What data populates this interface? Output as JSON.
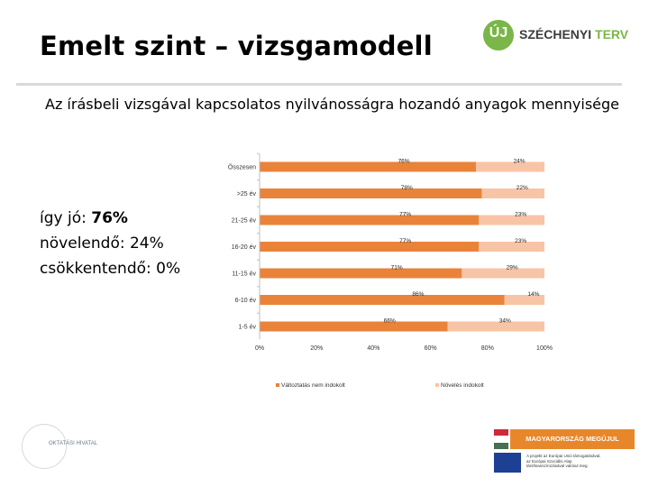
{
  "header": {
    "title": "Emelt szint – vizsgamodell",
    "logo_mark": "ÚJ",
    "logo_word1": "SZÉCHENYI",
    "logo_word2": "TERV"
  },
  "summary": {
    "line1_label": "így jó: ",
    "line1_value": "76%",
    "line2": "növelendő: 24%",
    "line3": "csökkentendő: 0%"
  },
  "footer": {
    "agency": "OKTATÁSI HIVATAL",
    "banner": "MAGYARORSZÁG MEGÚJUL",
    "eu_line1": "A projekt az Európai Unió támogatásával,",
    "eu_line2": "az Európai Szociális Alap",
    "eu_line3": "társfinanszírozásával valósul meg."
  },
  "colors": {
    "series1": "#e9833a",
    "series2": "#f8c4a6",
    "logo_green": "#7ab648",
    "banner_orange": "#e8872a",
    "eu_blue": "#1d3f94"
  },
  "chart_data": {
    "type": "bar",
    "orientation": "horizontal",
    "stacked": true,
    "title": "Az írásbeli vizsgával kapcsolatos nyilvánosságra hozandó anyagok mennyisége",
    "categories": [
      "Összesen",
      ">25 év",
      "21-25 év",
      "16-20 év",
      "11-15 év",
      "6-10 év",
      "1-5 év"
    ],
    "series": [
      {
        "name": "Változtatás nem indokolt",
        "values": [
          76,
          78,
          77,
          77,
          71,
          86,
          66
        ],
        "labels": [
          "76%",
          "78%",
          "77%",
          "77%",
          "71%",
          "86%",
          "66%"
        ]
      },
      {
        "name": "Növelés indokolt",
        "values": [
          24,
          22,
          23,
          23,
          29,
          14,
          34
        ],
        "labels": [
          "24%",
          "22%",
          "23%",
          "23%",
          "29%",
          "14%",
          "34%"
        ]
      }
    ],
    "xlim": [
      0,
      100
    ],
    "x_ticks": [
      "0%",
      "20%",
      "40%",
      "60%",
      "80%",
      "100%"
    ],
    "legend": "bottom",
    "grid": false
  }
}
